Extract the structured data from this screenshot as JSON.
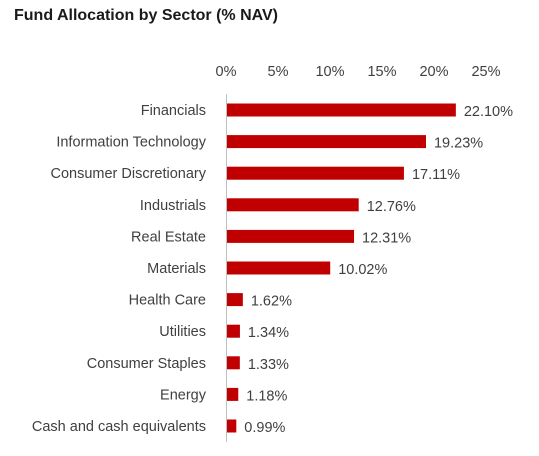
{
  "chart_data": {
    "type": "bar",
    "orientation": "horizontal",
    "title": "Fund Allocation by Sector (% NAV)",
    "xlabel": "",
    "ylabel": "",
    "xlim": [
      0,
      25
    ],
    "x_ticks": [
      0,
      5,
      10,
      15,
      20,
      25
    ],
    "x_tick_labels": [
      "0%",
      "5%",
      "10%",
      "15%",
      "20%",
      "25%"
    ],
    "x_axis_position": "top",
    "grid": false,
    "legend": "none",
    "bar_color": "#c00000",
    "categories": [
      "Financials",
      "Information Technology",
      "Consumer Discretionary",
      "Industrials",
      "Real Estate",
      "Materials",
      "Health Care",
      "Utilities",
      "Consumer Staples",
      "Energy",
      "Cash and cash equivalents"
    ],
    "values": [
      22.1,
      19.23,
      17.11,
      12.76,
      12.31,
      10.02,
      1.62,
      1.34,
      1.33,
      1.18,
      0.99
    ],
    "data_labels": [
      "22.10%",
      "19.23%",
      "17.11%",
      "12.76%",
      "12.31%",
      "10.02%",
      "1.62%",
      "1.34%",
      "1.33%",
      "1.18%",
      "0.99%"
    ]
  }
}
